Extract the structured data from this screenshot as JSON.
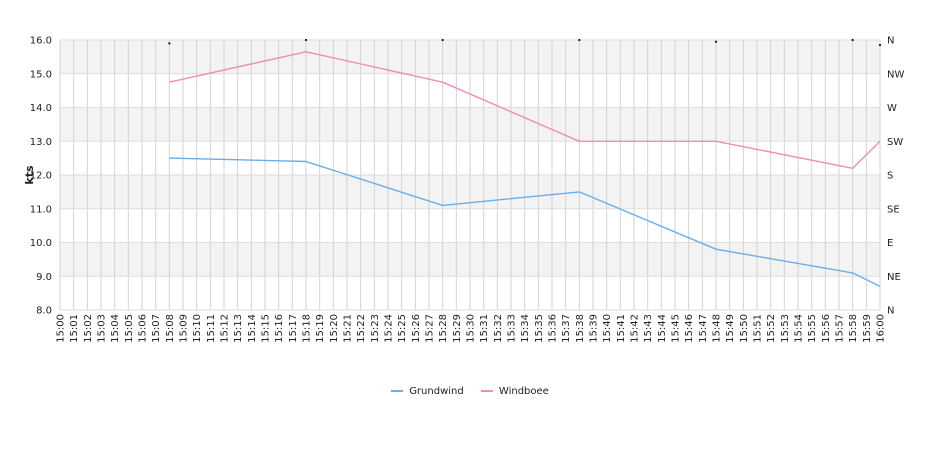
{
  "chart_data": {
    "type": "line",
    "title": "",
    "ylabel": "kts",
    "ylim": [
      8,
      16
    ],
    "yticks": [
      "8.0",
      "9.0",
      "10.0",
      "11.0",
      "12.0",
      "13.0",
      "14.0",
      "15.0",
      "16.0"
    ],
    "y2ticks": [
      "N",
      "NE",
      "E",
      "SE",
      "S",
      "SW",
      "W",
      "NW",
      "N"
    ],
    "xlim": [
      0,
      60
    ],
    "xticks": [
      "15:00",
      "15:01",
      "15:02",
      "15:03",
      "15:04",
      "15:05",
      "15:06",
      "15:07",
      "15:08",
      "15:09",
      "15:10",
      "15:11",
      "15:12",
      "15:13",
      "15:14",
      "15:15",
      "15:16",
      "15:17",
      "15:18",
      "15:19",
      "15:20",
      "15:21",
      "15:22",
      "15:23",
      "15:24",
      "15:25",
      "15:26",
      "15:27",
      "15:28",
      "15:29",
      "15:30",
      "15:31",
      "15:32",
      "15:33",
      "15:34",
      "15:35",
      "15:36",
      "15:37",
      "15:38",
      "15:39",
      "15:40",
      "15:41",
      "15:42",
      "15:43",
      "15:44",
      "15:45",
      "15:46",
      "15:47",
      "15:48",
      "15:49",
      "15:50",
      "15:51",
      "15:52",
      "15:53",
      "15:54",
      "15:55",
      "15:56",
      "15:57",
      "15:58",
      "15:59",
      "16:00"
    ],
    "series": [
      {
        "name": "Grundwind",
        "color": "#6aaee8",
        "x": [
          8,
          18,
          28,
          38,
          48,
          58,
          60
        ],
        "values": [
          12.5,
          12.4,
          11.1,
          11.5,
          9.8,
          9.1,
          8.7
        ]
      },
      {
        "name": "Windboee",
        "color": "#f08cbc",
        "x": [
          8,
          18,
          28,
          38,
          48,
          58,
          60
        ],
        "values": [
          14.75,
          15.65,
          14.75,
          13.0,
          13.0,
          12.2,
          13.0
        ]
      }
    ],
    "direction_markers_x": [
      8,
      18,
      28,
      38,
      48,
      58,
      60
    ],
    "direction_markers_y": [
      15.9,
      16.0,
      16.0,
      16.0,
      15.95,
      16.0,
      15.85
    ],
    "legend": "bottom",
    "grid": true
  }
}
